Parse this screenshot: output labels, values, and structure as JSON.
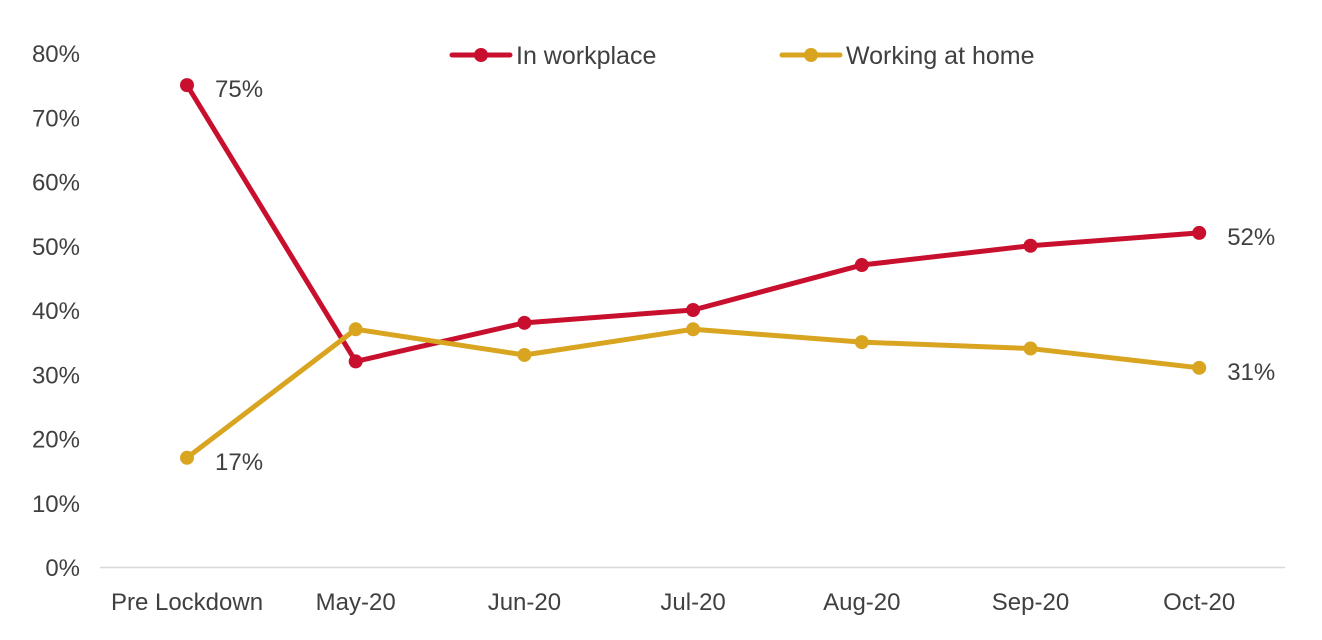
{
  "chart_data": {
    "type": "line",
    "title": "",
    "xlabel": "",
    "ylabel": "",
    "categories": [
      "Pre Lockdown",
      "May-20",
      "Jun-20",
      "Jul-20",
      "Aug-20",
      "Sep-20",
      "Oct-20"
    ],
    "ylim": [
      0,
      80
    ],
    "y_ticks": [
      0,
      10,
      20,
      30,
      40,
      50,
      60,
      70,
      80
    ],
    "y_tick_labels": [
      "0%",
      "10%",
      "20%",
      "30%",
      "40%",
      "50%",
      "60%",
      "70%",
      "80%"
    ],
    "grid": false,
    "legend_position": "top-center",
    "series": [
      {
        "name": "In workplace",
        "color": "#C8102E",
        "values": [
          75,
          32,
          38,
          40,
          47,
          50,
          52
        ],
        "data_labels": [
          {
            "index": 0,
            "text": "75%"
          },
          {
            "index": 6,
            "text": "52%"
          }
        ]
      },
      {
        "name": "Working at home",
        "color": "#D9A521",
        "values": [
          17,
          37,
          33,
          37,
          35,
          34,
          31
        ],
        "data_labels": [
          {
            "index": 0,
            "text": "17%"
          },
          {
            "index": 6,
            "text": "31%"
          }
        ]
      }
    ]
  }
}
